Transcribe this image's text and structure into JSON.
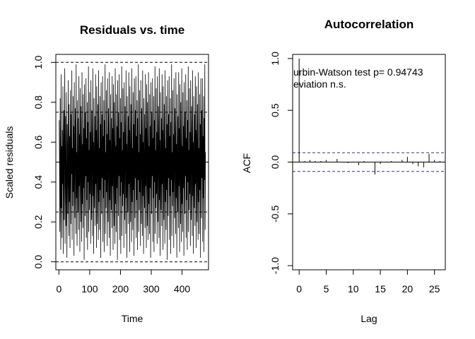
{
  "chart_data": [
    {
      "type": "line",
      "title": "Residuals vs. time",
      "xlabel": "Time",
      "ylabel": "Scaled residuals",
      "xlim": [
        -10,
        486
      ],
      "ylim": [
        -0.04,
        1.04
      ],
      "x_ticks": [
        0,
        100,
        200,
        300,
        400
      ],
      "y_ticks": [
        0.0,
        0.2,
        0.4,
        0.6,
        0.8,
        1.0
      ],
      "x_tick_labels": [
        "0",
        "100",
        "200",
        "300",
        "400"
      ],
      "y_tick_labels": [
        "0.0",
        "0.2",
        "0.4",
        "0.6",
        "0.8",
        "1.0"
      ],
      "reference_lines": [
        {
          "y": 0.0,
          "style": "dashed"
        },
        {
          "y": 0.25,
          "style": "dashed"
        },
        {
          "y": 0.5,
          "style": "solid"
        },
        {
          "y": 0.75,
          "style": "dashed"
        },
        {
          "y": 1.0,
          "style": "dashed"
        }
      ],
      "n": 476,
      "series": [
        {
          "x_start": 1,
          "x_step": 1,
          "values": [
            0.71,
            0.48,
            0.15,
            0.82,
            0.33,
            0.06,
            0.94,
            0.27,
            0.58,
            0.12,
            0.66,
            0.39,
            0.88,
            0.04,
            0.52,
            0.76,
            0.21,
            0.61,
            0.97,
            0.09,
            0.45,
            0.73,
            0.18,
            0.85,
            0.36,
            0.02,
            0.69,
            0.54,
            0.24,
            0.91,
            0.41,
            0.13,
            0.79,
            0.3,
            0.63,
            0.07,
            0.86,
            0.5,
            0.19,
            0.74,
            0.44,
            0.96,
            0.11,
            0.57,
            0.28,
            0.83,
            0.35,
            0.68,
            0.03,
            0.9,
            0.47,
            0.22,
            0.77,
            0.6,
            0.14,
            0.99,
            0.32,
            0.55,
            0.08,
            0.81,
            0.42,
            0.25,
            0.72,
            0.16,
            0.93,
            0.38,
            0.64,
            0.05,
            0.87,
            0.51,
            0.2,
            0.78,
            0.46,
            0.1,
            0.95,
            0.29,
            0.59,
            0.17,
            0.84,
            0.37,
            0.67,
            0.01,
            0.89,
            0.53,
            0.23,
            0.75,
            0.43,
            0.92,
            0.12,
            0.62,
            0.31,
            0.8,
            0.06,
            0.7,
            0.4,
            0.98,
            0.15,
            0.56,
            0.26,
            0.85,
            0.34,
            0.65,
            0.09,
            0.91,
            0.49,
            0.21,
            0.76,
            0.58,
            0.13,
            0.97,
            0.33,
            0.6,
            0.04,
            0.82,
            0.44,
            0.27,
            0.73,
            0.18,
            0.94,
            0.39,
            0.66,
            0.07,
            0.88,
            0.52,
            0.19,
            0.79,
            0.47,
            0.11,
            0.96,
            0.3,
            0.57,
            0.16,
            0.83,
            0.36,
            0.69,
            0.02,
            0.9,
            0.54,
            0.24,
            0.74,
            0.42,
            0.93,
            0.1,
            0.63,
            0.32,
            0.81,
            0.05,
            0.71,
            0.41,
            0.99,
            0.14,
            0.55,
            0.27,
            0.86,
            0.35,
            0.64,
            0.08,
            0.92,
            0.48,
            0.2,
            0.77,
            0.59,
            0.12,
            0.95,
            0.31,
            0.61,
            0.03,
            0.84,
            0.45,
            0.26,
            0.72,
            0.17,
            0.93,
            0.38,
            0.67,
            0.06,
            0.89,
            0.53,
            0.18,
            0.8,
            0.46,
            0.09,
            0.97,
            0.29,
            0.58,
            0.15,
            0.84,
            0.37,
            0.68,
            0.01,
            0.91,
            0.55,
            0.23,
            0.75,
            0.43,
            0.94,
            0.11,
            0.62,
            0.33,
            0.82,
            0.04,
            0.7,
            0.4,
            0.98,
            0.13,
            0.56,
            0.28,
            0.87,
            0.34,
            0.65,
            0.07,
            0.9,
            0.49,
            0.21,
            0.78,
            0.6,
            0.14,
            0.96,
            0.32,
            0.59,
            0.02,
            0.83,
            0.44,
            0.25,
            0.73,
            0.19,
            0.95,
            0.39,
            0.66,
            0.05,
            0.88,
            0.51,
            0.2,
            0.79,
            0.47,
            0.1,
            0.97,
            0.3,
            0.57,
            0.16,
            0.85,
            0.36,
            0.69,
            0.03,
            0.92,
            0.54,
            0.22,
            0.76,
            0.42,
            0.93,
            0.12,
            0.63,
            0.31,
            0.81,
            0.06,
            0.72,
            0.41,
            0.99,
            0.15,
            0.55,
            0.26,
            0.86,
            0.35,
            0.64,
            0.08,
            0.91,
            0.48,
            0.19,
            0.77,
            0.58,
            0.13,
            0.96,
            0.33,
            0.6,
            0.04,
            0.82,
            0.45,
            0.27,
            0.74,
            0.17,
            0.94,
            0.38,
            0.67,
            0.07,
            0.89,
            0.52,
            0.18,
            0.8,
            0.46,
            0.11,
            0.95,
            0.29,
            0.58,
            0.14,
            0.84,
            0.37,
            0.68,
            0.02,
            0.9,
            0.53,
            0.24,
            0.75,
            0.43,
            0.92,
            0.1,
            0.62,
            0.32,
            0.83,
            0.05,
            0.71,
            0.4,
            0.98,
            0.14,
            0.56,
            0.27,
            0.87,
            0.34,
            0.65,
            0.09,
            0.93,
            0.49,
            0.2,
            0.78,
            0.59,
            0.12,
            0.97,
            0.31,
            0.61,
            0.03,
            0.85,
            0.44,
            0.26,
            0.72,
            0.18,
            0.94,
            0.39,
            0.66,
            0.06,
            0.88,
            0.51,
            0.21,
            0.79,
            0.47,
            0.09,
            0.96,
            0.3,
            0.57,
            0.16,
            0.83,
            0.36,
            0.69,
            0.01,
            0.91,
            0.54,
            0.23,
            0.74,
            0.42,
            0.93,
            0.11,
            0.63,
            0.33,
            0.82,
            0.04,
            0.7,
            0.41,
            0.99,
            0.13,
            0.55,
            0.28,
            0.86,
            0.35,
            0.64,
            0.07,
            0.92,
            0.48,
            0.22,
            0.77,
            0.6,
            0.14,
            0.95,
            0.32,
            0.59,
            0.02,
            0.84,
            0.45,
            0.25,
            0.73,
            0.17,
            0.95,
            0.38,
            0.67,
            0.05,
            0.89,
            0.52,
            0.19,
            0.8,
            0.46,
            0.1,
            0.97,
            0.29,
            0.58,
            0.15,
            0.85,
            0.37,
            0.68,
            0.03,
            0.9,
            0.55,
            0.24,
            0.75,
            0.43,
            0.94,
            0.12,
            0.62,
            0.31,
            0.81,
            0.06,
            0.71,
            0.4,
            0.98,
            0.15,
            0.56,
            0.26,
            0.87,
            0.34,
            0.65,
            0.08,
            0.91,
            0.49,
            0.21,
            0.78,
            0.58,
            0.13,
            0.96,
            0.33,
            0.6,
            0.04,
            0.83,
            0.44,
            0.27,
            0.74,
            0.18,
            0.93,
            0.39,
            0.66,
            0.07,
            0.88,
            0.53,
            0.2,
            0.79,
            0.47,
            0.11,
            0.95,
            0.3,
            0.57,
            0.14,
            0.84,
            0.36,
            0.69,
            0.02,
            0.92,
            0.54,
            0.22,
            0.76,
            0.42,
            0.92,
            0.1,
            0.63,
            0.32,
            0.83,
            0.05,
            0.72,
            0.41,
            0.99,
            0.16,
            0.55,
            0.27,
            0.86
          ]
        }
      ]
    },
    {
      "type": "bar",
      "subtype": "acf",
      "title": "Autocorrelation",
      "xlabel": "Lag",
      "ylabel": "ACF",
      "xlim": [
        -1.2,
        27
      ],
      "ylim": [
        -1.04,
        1.04
      ],
      "x_ticks": [
        0,
        5,
        10,
        15,
        20,
        25
      ],
      "y_ticks": [
        -1.0,
        -0.5,
        0.0,
        0.5,
        1.0
      ],
      "x_tick_labels": [
        "0",
        "5",
        "10",
        "15",
        "20",
        "25"
      ],
      "y_tick_labels": [
        "-1.0",
        "-0.5",
        "0.0",
        "0.5",
        "1.0"
      ],
      "confidence_bounds": [
        -0.09,
        0.09
      ],
      "zero_line": 0,
      "lags": [
        0,
        1,
        2,
        3,
        4,
        5,
        6,
        7,
        8,
        9,
        10,
        11,
        12,
        13,
        14,
        15,
        16,
        17,
        18,
        19,
        20,
        21,
        22,
        23,
        24,
        25,
        26
      ],
      "values": [
        1.0,
        0.01,
        0.02,
        0.01,
        0.01,
        0.02,
        0.0,
        0.03,
        0.0,
        -0.01,
        0.0,
        -0.03,
        0.01,
        0.0,
        -0.12,
        -0.02,
        0.0,
        0.01,
        0.0,
        0.02,
        0.05,
        -0.02,
        -0.04,
        -0.05,
        0.08,
        0.02,
        0.01
      ],
      "annotations": [
        "urbin-Watson test  p= 0.94743",
        "eviation  n.s."
      ]
    }
  ]
}
